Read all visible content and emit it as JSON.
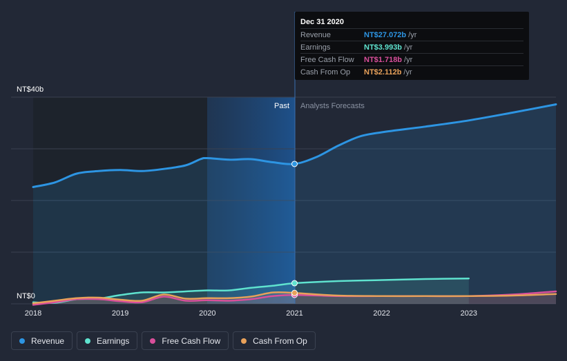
{
  "chart_data": {
    "type": "line",
    "y_axis": {
      "top_label": "NT$40b",
      "bottom_label": "NT$0",
      "ylim": [
        0,
        40
      ]
    },
    "x_ticks": [
      "2018",
      "2019",
      "2020",
      "2021",
      "2022",
      "2023"
    ],
    "xlim": [
      2018.0,
      2024.0
    ],
    "regions": {
      "past_label": "Past",
      "forecast_label": "Analysts Forecasts",
      "divider_x": 2021.0
    },
    "series": [
      {
        "name": "Revenue",
        "color": "#2d95e3",
        "points": [
          [
            2018.0,
            22.6
          ],
          [
            2018.25,
            23.5
          ],
          [
            2018.5,
            25.2
          ],
          [
            2018.75,
            25.7
          ],
          [
            2019.0,
            25.9
          ],
          [
            2019.25,
            25.7
          ],
          [
            2019.5,
            26.1
          ],
          [
            2019.75,
            26.8
          ],
          [
            2019.92,
            28.0
          ],
          [
            2020.0,
            28.2
          ],
          [
            2020.25,
            27.9
          ],
          [
            2020.5,
            28.0
          ],
          [
            2020.75,
            27.4
          ],
          [
            2021.0,
            27.072
          ],
          [
            2021.25,
            28.4
          ],
          [
            2021.5,
            30.6
          ],
          [
            2021.75,
            32.4
          ],
          [
            2022.0,
            33.2
          ],
          [
            2022.5,
            34.3
          ],
          [
            2023.0,
            35.5
          ],
          [
            2023.5,
            37.0
          ],
          [
            2024.0,
            38.6
          ]
        ]
      },
      {
        "name": "Earnings",
        "color": "#5fe3cf",
        "points": [
          [
            2018.0,
            0.3
          ],
          [
            2018.25,
            0.2
          ],
          [
            2018.5,
            0.9
          ],
          [
            2018.75,
            1.0
          ],
          [
            2019.0,
            1.7
          ],
          [
            2019.25,
            2.2
          ],
          [
            2019.5,
            2.2
          ],
          [
            2019.75,
            2.4
          ],
          [
            2020.0,
            2.6
          ],
          [
            2020.25,
            2.6
          ],
          [
            2020.5,
            3.1
          ],
          [
            2020.75,
            3.5
          ],
          [
            2021.0,
            3.993
          ],
          [
            2021.5,
            4.4
          ],
          [
            2022.0,
            4.6
          ],
          [
            2022.5,
            4.8
          ],
          [
            2023.0,
            4.9
          ]
        ]
      },
      {
        "name": "Free Cash Flow",
        "color": "#d94f9b",
        "points": [
          [
            2018.0,
            -0.2
          ],
          [
            2018.25,
            0.3
          ],
          [
            2018.5,
            0.9
          ],
          [
            2018.75,
            0.9
          ],
          [
            2019.0,
            0.5
          ],
          [
            2019.25,
            0.3
          ],
          [
            2019.5,
            1.4
          ],
          [
            2019.75,
            0.6
          ],
          [
            2020.0,
            0.7
          ],
          [
            2020.25,
            0.6
          ],
          [
            2020.5,
            0.9
          ],
          [
            2020.75,
            1.5
          ],
          [
            2021.0,
            1.718
          ],
          [
            2021.5,
            1.5
          ],
          [
            2022.0,
            1.5
          ],
          [
            2022.5,
            1.5
          ],
          [
            2023.0,
            1.5
          ],
          [
            2023.5,
            1.8
          ],
          [
            2024.0,
            2.4
          ]
        ]
      },
      {
        "name": "Cash From Op",
        "color": "#e8a15a",
        "points": [
          [
            2018.0,
            0.1
          ],
          [
            2018.25,
            0.6
          ],
          [
            2018.5,
            1.1
          ],
          [
            2018.75,
            1.2
          ],
          [
            2019.0,
            0.8
          ],
          [
            2019.25,
            0.6
          ],
          [
            2019.5,
            1.8
          ],
          [
            2019.75,
            1.0
          ],
          [
            2020.0,
            1.1
          ],
          [
            2020.25,
            1.1
          ],
          [
            2020.5,
            1.4
          ],
          [
            2020.75,
            2.2
          ],
          [
            2021.0,
            2.112
          ],
          [
            2021.5,
            1.6
          ],
          [
            2022.0,
            1.5
          ],
          [
            2022.5,
            1.5
          ],
          [
            2023.0,
            1.5
          ],
          [
            2023.5,
            1.6
          ],
          [
            2024.0,
            1.9
          ]
        ]
      }
    ],
    "tooltip": {
      "date": "Dec 31 2020",
      "rows": [
        {
          "name": "Revenue",
          "value": "NT$27.072b",
          "unit": "/yr",
          "color": "#2d95e3"
        },
        {
          "name": "Earnings",
          "value": "NT$3.993b",
          "unit": "/yr",
          "color": "#5fe3cf"
        },
        {
          "name": "Free Cash Flow",
          "value": "NT$1.718b",
          "unit": "/yr",
          "color": "#d94f9b"
        },
        {
          "name": "Cash From Op",
          "value": "NT$2.112b",
          "unit": "/yr",
          "color": "#e8a15a"
        }
      ]
    }
  },
  "legend": [
    {
      "label": "Revenue",
      "color": "#2d95e3"
    },
    {
      "label": "Earnings",
      "color": "#5fe3cf"
    },
    {
      "label": "Free Cash Flow",
      "color": "#d94f9b"
    },
    {
      "label": "Cash From Op",
      "color": "#e8a15a"
    }
  ]
}
